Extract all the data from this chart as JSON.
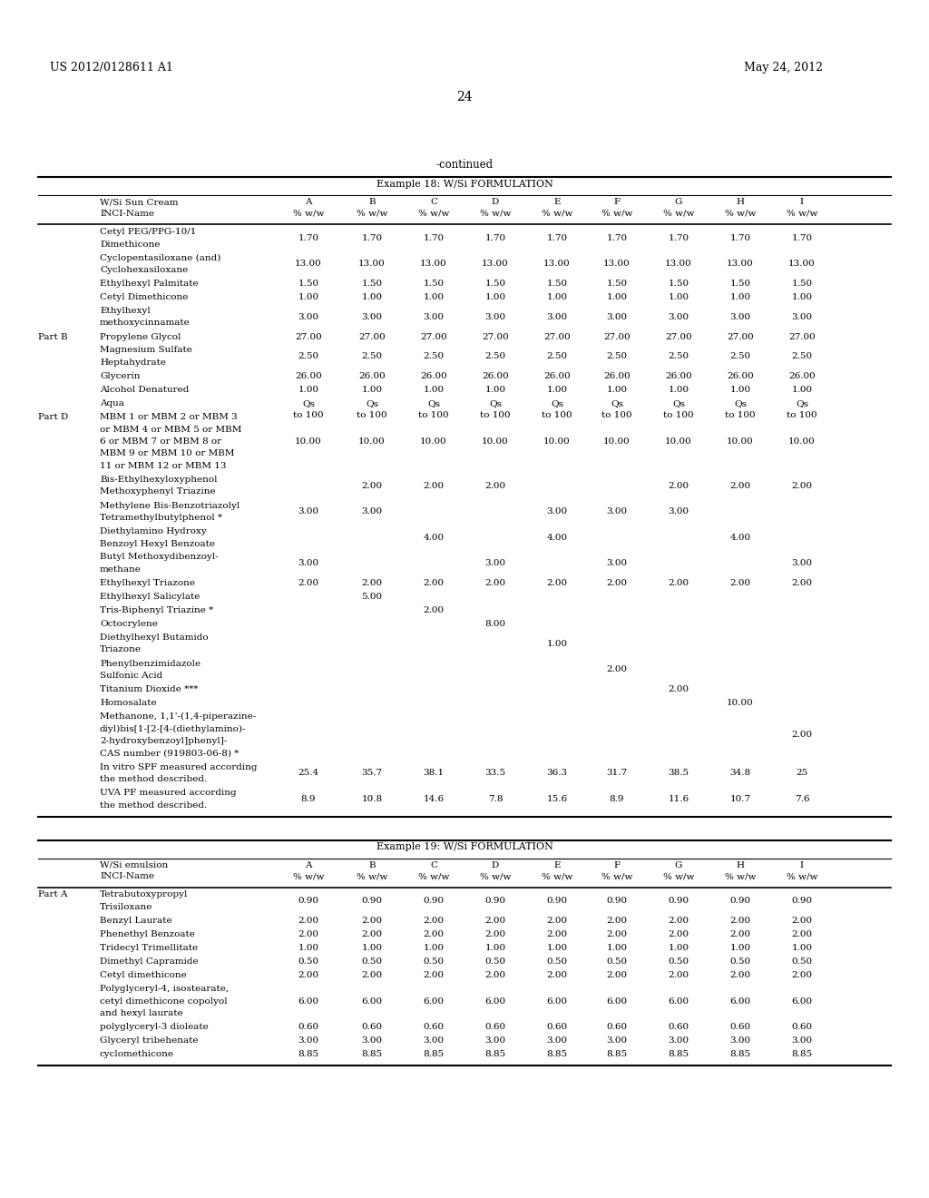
{
  "bg_color": "#ffffff",
  "header_left": "US 2012/0128611 A1",
  "header_right": "May 24, 2012",
  "page_number": "24",
  "continued_text": "-continued",
  "table1": {
    "title": "Example 18: W/Si FORMULATION",
    "col_header_name1": "W/Si Sun Cream",
    "col_header_name2": "INCI-Name",
    "header_cols": [
      "A\n% w/w",
      "B\n% w/w",
      "C\n% w/w",
      "D\n% w/w",
      "E\n% w/w",
      "F\n% w/w",
      "G\n% w/w",
      "H\n% w/w",
      "I\n% w/w"
    ],
    "rows": [
      {
        "part": "",
        "name": [
          "Cetyl PEG/PPG-10/1",
          "Dimethicone"
        ],
        "vals": [
          "1.70",
          "1.70",
          "1.70",
          "1.70",
          "1.70",
          "1.70",
          "1.70",
          "1.70",
          "1.70"
        ]
      },
      {
        "part": "",
        "name": [
          "Cyclopentasiloxane (and)",
          "Cyclohexasiloxane"
        ],
        "vals": [
          "13.00",
          "13.00",
          "13.00",
          "13.00",
          "13.00",
          "13.00",
          "13.00",
          "13.00",
          "13.00"
        ]
      },
      {
        "part": "",
        "name": [
          "Ethylhexyl Palmitate"
        ],
        "vals": [
          "1.50",
          "1.50",
          "1.50",
          "1.50",
          "1.50",
          "1.50",
          "1.50",
          "1.50",
          "1.50"
        ]
      },
      {
        "part": "",
        "name": [
          "Cetyl Dimethicone"
        ],
        "vals": [
          "1.00",
          "1.00",
          "1.00",
          "1.00",
          "1.00",
          "1.00",
          "1.00",
          "1.00",
          "1.00"
        ]
      },
      {
        "part": "",
        "name": [
          "Ethylhexyl",
          "methoxycinnamate"
        ],
        "vals": [
          "3.00",
          "3.00",
          "3.00",
          "3.00",
          "3.00",
          "3.00",
          "3.00",
          "3.00",
          "3.00"
        ]
      },
      {
        "part": "Part B",
        "name": [
          "Propylene Glycol"
        ],
        "vals": [
          "27.00",
          "27.00",
          "27.00",
          "27.00",
          "27.00",
          "27.00",
          "27.00",
          "27.00",
          "27.00"
        ]
      },
      {
        "part": "",
        "name": [
          "Magnesium Sulfate",
          "Heptahydrate"
        ],
        "vals": [
          "2.50",
          "2.50",
          "2.50",
          "2.50",
          "2.50",
          "2.50",
          "2.50",
          "2.50",
          "2.50"
        ]
      },
      {
        "part": "",
        "name": [
          "Glycerin"
        ],
        "vals": [
          "26.00",
          "26.00",
          "26.00",
          "26.00",
          "26.00",
          "26.00",
          "26.00",
          "26.00",
          "26.00"
        ]
      },
      {
        "part": "",
        "name": [
          "Alcohol Denatured"
        ],
        "vals": [
          "1.00",
          "1.00",
          "1.00",
          "1.00",
          "1.00",
          "1.00",
          "1.00",
          "1.00",
          "1.00"
        ]
      },
      {
        "part": "",
        "name": [
          "Aqua"
        ],
        "vals": [
          "Qs|to 100",
          "Qs|to 100",
          "Qs|to 100",
          "Qs|to 100",
          "Qs|to 100",
          "Qs|to 100",
          "Qs|to 100",
          "Qs|to 100",
          "Qs|to 100"
        ]
      },
      {
        "part": "Part D",
        "name": [
          "MBM 1 or MBM 2 or MBM 3",
          "or MBM 4 or MBM 5 or MBM",
          "6 or MBM 7 or MBM 8 or",
          "MBM 9 or MBM 10 or MBM",
          "11 or MBM 12 or MBM 13"
        ],
        "vals": [
          "10.00",
          "10.00",
          "10.00",
          "10.00",
          "10.00",
          "10.00",
          "10.00",
          "10.00",
          "10.00"
        ]
      },
      {
        "part": "",
        "name": [
          "Bis-Ethylhexyloxyphenol",
          "Methoxyphenyl Triazine"
        ],
        "vals": [
          "",
          "2.00",
          "2.00",
          "2.00",
          "",
          "",
          "2.00",
          "2.00",
          "2.00"
        ]
      },
      {
        "part": "",
        "name": [
          "Methylene Bis-Benzotriazolyl",
          "Tetramethylbutylphenol *"
        ],
        "vals": [
          "3.00",
          "3.00",
          "",
          "",
          "3.00",
          "3.00",
          "3.00",
          "",
          ""
        ]
      },
      {
        "part": "",
        "name": [
          "Diethylamino Hydroxy",
          "Benzoyl Hexyl Benzoate"
        ],
        "vals": [
          "",
          "",
          "4.00",
          "",
          "4.00",
          "",
          "",
          "4.00",
          ""
        ]
      },
      {
        "part": "",
        "name": [
          "Butyl Methoxydibenzoyl-",
          "methane"
        ],
        "vals": [
          "3.00",
          "",
          "",
          "3.00",
          "",
          "3.00",
          "",
          "",
          "3.00"
        ]
      },
      {
        "part": "",
        "name": [
          "Ethylhexyl Triazone"
        ],
        "vals": [
          "2.00",
          "2.00",
          "2.00",
          "2.00",
          "2.00",
          "2.00",
          "2.00",
          "2.00",
          "2.00"
        ]
      },
      {
        "part": "",
        "name": [
          "Ethylhexyl Salicylate"
        ],
        "vals": [
          "",
          "5.00",
          "",
          "",
          "",
          "",
          "",
          "",
          ""
        ]
      },
      {
        "part": "",
        "name": [
          "Tris-Biphenyl Triazine *"
        ],
        "vals": [
          "",
          "",
          "2.00",
          "",
          "",
          "",
          "",
          "",
          ""
        ]
      },
      {
        "part": "",
        "name": [
          "Octocrylene"
        ],
        "vals": [
          "",
          "",
          "",
          "8.00",
          "",
          "",
          "",
          "",
          ""
        ]
      },
      {
        "part": "",
        "name": [
          "Diethylhexyl Butamido",
          "Triazone"
        ],
        "vals": [
          "",
          "",
          "",
          "",
          "1.00",
          "",
          "",
          "",
          ""
        ]
      },
      {
        "part": "",
        "name": [
          "Phenylbenzimidazole",
          "Sulfonic Acid"
        ],
        "vals": [
          "",
          "",
          "",
          "",
          "",
          "2.00",
          "",
          "",
          ""
        ]
      },
      {
        "part": "",
        "name": [
          "Titanium Dioxide ***"
        ],
        "vals": [
          "",
          "",
          "",
          "",
          "",
          "",
          "2.00",
          "",
          ""
        ]
      },
      {
        "part": "",
        "name": [
          "Homosalate"
        ],
        "vals": [
          "",
          "",
          "",
          "",
          "",
          "",
          "",
          "10.00",
          ""
        ]
      },
      {
        "part": "",
        "name": [
          "Methanone, 1,1'-(1,4-piperazine-",
          "diyl)bis[1-[2-[4-(diethylamino)-",
          "2-hydroxybenzoyl]phenyl]-",
          "CAS number (919803-06-8) *"
        ],
        "vals": [
          "",
          "",
          "",
          "",
          "",
          "",
          "",
          "",
          "2.00"
        ]
      },
      {
        "part": "",
        "name": [
          "In vitro SPF measured according",
          "the method described."
        ],
        "vals": [
          "25.4",
          "35.7",
          "38.1",
          "33.5",
          "36.3",
          "31.7",
          "38.5",
          "34.8",
          "25"
        ]
      },
      {
        "part": "",
        "name": [
          "UVA PF measured according",
          "the method described."
        ],
        "vals": [
          "8.9",
          "10.8",
          "14.6",
          "7.8",
          "15.6",
          "8.9",
          "11.6",
          "10.7",
          "7.6"
        ]
      }
    ]
  },
  "table2": {
    "title": "Example 19: W/Si FORMULATION",
    "col_header_name1": "W/Si emulsion",
    "col_header_name2": "INCI-Name",
    "header_cols": [
      "A\n% w/w",
      "B\n% w/w",
      "C\n% w/w",
      "D\n% w/w",
      "E\n% w/w",
      "F\n% w/w",
      "G\n% w/w",
      "H\n% w/w",
      "I\n% w/w"
    ],
    "rows": [
      {
        "part": "Part A",
        "name": [
          "Tetrabutoxypropyl",
          "Trisiloxane"
        ],
        "vals": [
          "0.90",
          "0.90",
          "0.90",
          "0.90",
          "0.90",
          "0.90",
          "0.90",
          "0.90",
          "0.90"
        ]
      },
      {
        "part": "",
        "name": [
          "Benzyl Laurate"
        ],
        "vals": [
          "2.00",
          "2.00",
          "2.00",
          "2.00",
          "2.00",
          "2.00",
          "2.00",
          "2.00",
          "2.00"
        ]
      },
      {
        "part": "",
        "name": [
          "Phenethyl Benzoate"
        ],
        "vals": [
          "2.00",
          "2.00",
          "2.00",
          "2.00",
          "2.00",
          "2.00",
          "2.00",
          "2.00",
          "2.00"
        ]
      },
      {
        "part": "",
        "name": [
          "Tridecyl Trimellitate"
        ],
        "vals": [
          "1.00",
          "1.00",
          "1.00",
          "1.00",
          "1.00",
          "1.00",
          "1.00",
          "1.00",
          "1.00"
        ]
      },
      {
        "part": "",
        "name": [
          "Dimethyl Capramide"
        ],
        "vals": [
          "0.50",
          "0.50",
          "0.50",
          "0.50",
          "0.50",
          "0.50",
          "0.50",
          "0.50",
          "0.50"
        ]
      },
      {
        "part": "",
        "name": [
          "Cetyl dimethicone"
        ],
        "vals": [
          "2.00",
          "2.00",
          "2.00",
          "2.00",
          "2.00",
          "2.00",
          "2.00",
          "2.00",
          "2.00"
        ]
      },
      {
        "part": "",
        "name": [
          "Polyglyceryl-4, isostearate,",
          "cetyl dimethicone copolyol",
          "and hexyl laurate"
        ],
        "vals": [
          "6.00",
          "6.00",
          "6.00",
          "6.00",
          "6.00",
          "6.00",
          "6.00",
          "6.00",
          "6.00"
        ]
      },
      {
        "part": "",
        "name": [
          "polyglyceryl-3 dioleate"
        ],
        "vals": [
          "0.60",
          "0.60",
          "0.60",
          "0.60",
          "0.60",
          "0.60",
          "0.60",
          "0.60",
          "0.60"
        ]
      },
      {
        "part": "",
        "name": [
          "Glyceryl tribehenate"
        ],
        "vals": [
          "3.00",
          "3.00",
          "3.00",
          "3.00",
          "3.00",
          "3.00",
          "3.00",
          "3.00",
          "3.00"
        ]
      },
      {
        "part": "",
        "name": [
          "cyclomethicone"
        ],
        "vals": [
          "8.85",
          "8.85",
          "8.85",
          "8.85",
          "8.85",
          "8.85",
          "8.85",
          "8.85",
          "8.85"
        ]
      }
    ]
  }
}
